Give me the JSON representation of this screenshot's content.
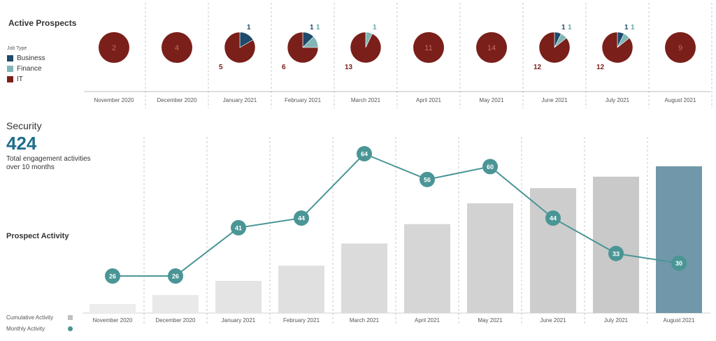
{
  "prospects": {
    "title": "Active Prospects",
    "legend": {
      "title": "Job Type",
      "items": [
        {
          "label": "Business",
          "color": "#1e4a6b"
        },
        {
          "label": "Finance",
          "color": "#7fb6b5"
        },
        {
          "label": "IT",
          "color": "#7a1f1a"
        }
      ]
    }
  },
  "security": {
    "title": "Security",
    "total": "424",
    "caption": "Total engagement activities over 10 months",
    "activity_title": "Prospect Activity"
  },
  "bottom_legend": {
    "cumulative_label": "Cumulative Activity",
    "monthly_label": "Monthly Activity",
    "cumulative_color": "#c8c8c8",
    "cumulative_last_color": "#7198aa",
    "monthly_color": "#4a9595"
  },
  "chart_data": [
    {
      "type": "pie",
      "title": "Active Prospects",
      "categories": [
        "November 2020",
        "December 2020",
        "January 2021",
        "February 2021",
        "March 2021",
        "April 2021",
        "May 2021",
        "June 2021",
        "July 2021",
        "August 2021"
      ],
      "series": [
        {
          "name": "Business",
          "values": [
            0,
            0,
            1,
            1,
            0,
            0,
            0,
            1,
            1,
            0
          ]
        },
        {
          "name": "Finance",
          "values": [
            0,
            0,
            0,
            1,
            1,
            0,
            0,
            1,
            1,
            0
          ]
        },
        {
          "name": "IT",
          "values": [
            2,
            4,
            5,
            6,
            13,
            11,
            14,
            12,
            12,
            9
          ]
        }
      ],
      "legend": "left"
    },
    {
      "type": "bar",
      "title": "Prospect Activity",
      "categories": [
        "November 2020",
        "December 2020",
        "January 2021",
        "February 2021",
        "March 2021",
        "April 2021",
        "May 2021",
        "June 2021",
        "July 2021",
        "August 2021"
      ],
      "series": [
        {
          "name": "Cumulative Activity",
          "type": "bar",
          "values": [
            26,
            52,
            93,
            137,
            201,
            257,
            317,
            361,
            394,
            424
          ]
        },
        {
          "name": "Monthly Activity",
          "type": "line",
          "values": [
            26,
            26,
            41,
            44,
            64,
            56,
            60,
            44,
            33,
            30
          ]
        }
      ],
      "grid": "vertical dashed"
    }
  ]
}
